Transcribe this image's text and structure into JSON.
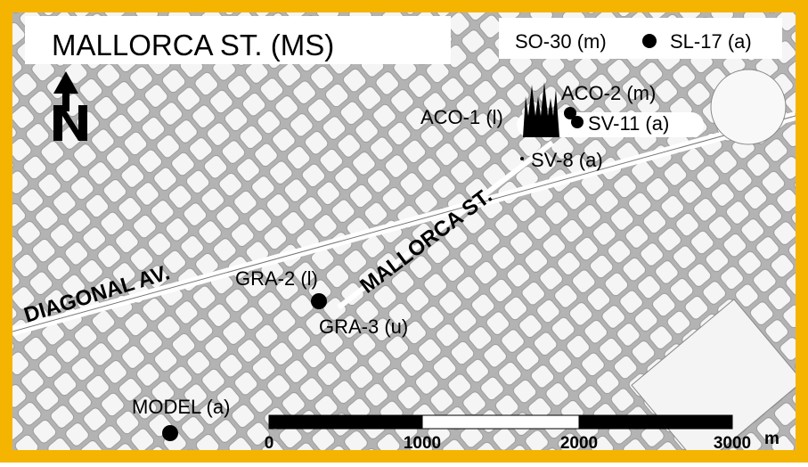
{
  "title": "MALLORCA ST. (MS)",
  "streets": [
    "DIAGONAL AV.",
    "MALLORCA ST."
  ],
  "sites": [
    {
      "label": "SO-30 (m)"
    },
    {
      "label": "SL-17 (a)"
    },
    {
      "label": "ACO-1 (l)"
    },
    {
      "label": "ACO-2 (m)"
    },
    {
      "label": "SV-11 (a)"
    },
    {
      "label": "SV-8 (a)"
    },
    {
      "label": "GRA-2 (l)"
    },
    {
      "label": "GRA-3 (u)"
    },
    {
      "label": "MODEL (a)"
    }
  ],
  "scale_bar": {
    "ticks": [
      0,
      1000,
      2000,
      3000
    ],
    "unit": "m"
  }
}
